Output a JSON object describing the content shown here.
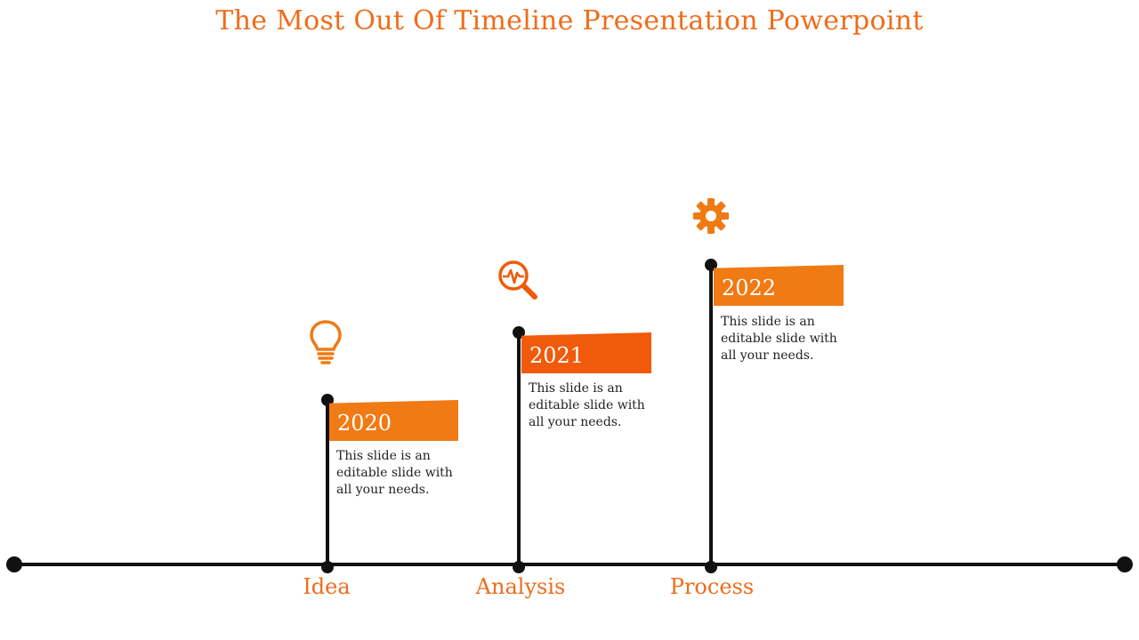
{
  "title": "The Most Out Of Timeline Presentation Powerpoint",
  "colors": {
    "accent": "#f06c1a",
    "flag_a": "#f07a14",
    "flag_b": "#f05a0a",
    "line": "#111111"
  },
  "milestones": [
    {
      "year": "2020",
      "description": "This slide is an editable slide with all your needs.",
      "label": "Idea",
      "icon": "lightbulb-icon"
    },
    {
      "year": "2021",
      "description": "This slide is an editable slide with all your needs.",
      "label": "Analysis",
      "icon": "magnifier-pulse-icon"
    },
    {
      "year": "2022",
      "description": "This slide is an editable slide with all your needs.",
      "label": "Process",
      "icon": "gear-icon"
    }
  ]
}
